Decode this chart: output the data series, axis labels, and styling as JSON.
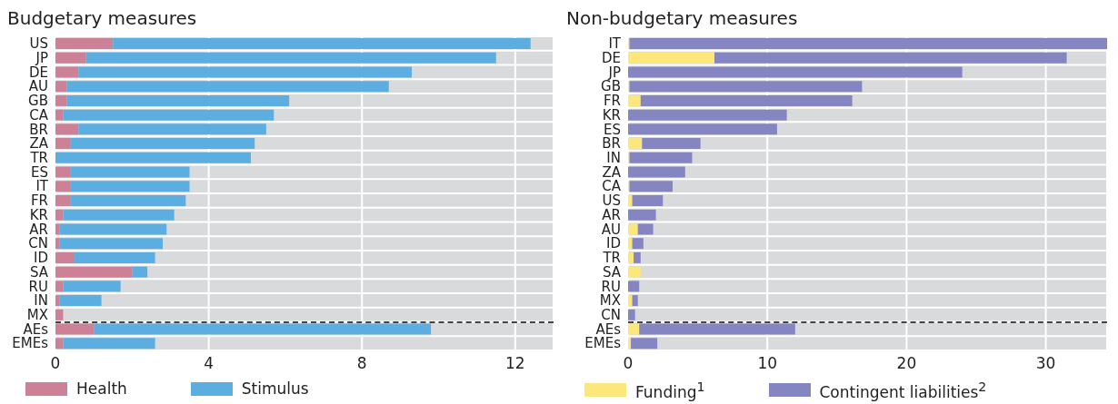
{
  "chart_data": [
    {
      "type": "bar",
      "orientation": "horizontal",
      "stacked": true,
      "title": "Budgetary measures",
      "categories": [
        "US",
        "JP",
        "DE",
        "AU",
        "GB",
        "CA",
        "BR",
        "ZA",
        "TR",
        "ES",
        "IT",
        "FR",
        "KR",
        "AR",
        "CN",
        "ID",
        "SA",
        "RU",
        "IN",
        "MX",
        "AEs",
        "EMEs"
      ],
      "series": [
        {
          "name": "Health",
          "color": "#cc8196",
          "values": [
            1.5,
            0.8,
            0.6,
            0.3,
            0.3,
            0.2,
            0.6,
            0.4,
            0,
            0.4,
            0.4,
            0.4,
            0.2,
            0.1,
            0.1,
            0.5,
            2.0,
            0.2,
            0.1,
            0.2,
            1.0,
            0.2
          ]
        },
        {
          "name": "Stimulus",
          "color": "#5daee0",
          "values": [
            10.9,
            10.7,
            8.7,
            8.4,
            5.8,
            5.5,
            4.9,
            4.8,
            5.1,
            3.1,
            3.1,
            3.0,
            2.9,
            2.8,
            2.7,
            2.1,
            0.4,
            1.5,
            1.1,
            0,
            8.8,
            2.4
          ]
        }
      ],
      "ref_lines": [
        {
          "axis": "y",
          "value": "AEs",
          "line_style": "dashed",
          "color": "#444444"
        }
      ],
      "xlim": [
        0,
        13
      ],
      "xticks": [
        0,
        4,
        8,
        12
      ],
      "grid": "x",
      "legend": "bottom"
    },
    {
      "type": "bar",
      "orientation": "horizontal",
      "stacked": true,
      "title": "Non-budgetary measures",
      "categories": [
        "IT",
        "DE",
        "JP",
        "GB",
        "FR",
        "KR",
        "ES",
        "BR",
        "IN",
        "ZA",
        "CA",
        "US",
        "AR",
        "AU",
        "ID",
        "TR",
        "SA",
        "RU",
        "MX",
        "CN",
        "AEs",
        "EMEs"
      ],
      "series": [
        {
          "name": "Funding$^{1}$",
          "color": "#fde77a",
          "values": [
            0.1,
            6.2,
            0,
            0.1,
            0.9,
            0,
            0,
            1.0,
            0.1,
            0,
            0.1,
            0.3,
            0,
            0.7,
            0.3,
            0.4,
            0.9,
            0,
            0.3,
            0,
            0.8,
            0.2
          ]
        },
        {
          "name": "Contingent liabilities$^{2}$",
          "color": "#8586c1",
          "values": [
            34.3,
            25.3,
            24.0,
            16.7,
            15.2,
            11.4,
            10.7,
            4.2,
            4.5,
            4.1,
            3.1,
            2.2,
            2.0,
            1.1,
            0.8,
            0.5,
            0,
            0.8,
            0.4,
            0.5,
            11.2,
            1.9
          ]
        }
      ],
      "ref_lines": [
        {
          "axis": "y",
          "value": "AEs",
          "line_style": "dashed",
          "color": "#444444"
        }
      ],
      "xlim": [
        0,
        34.4
      ],
      "xticks": [
        0,
        10,
        20,
        30
      ],
      "grid": "x",
      "legend": "bottom"
    }
  ]
}
